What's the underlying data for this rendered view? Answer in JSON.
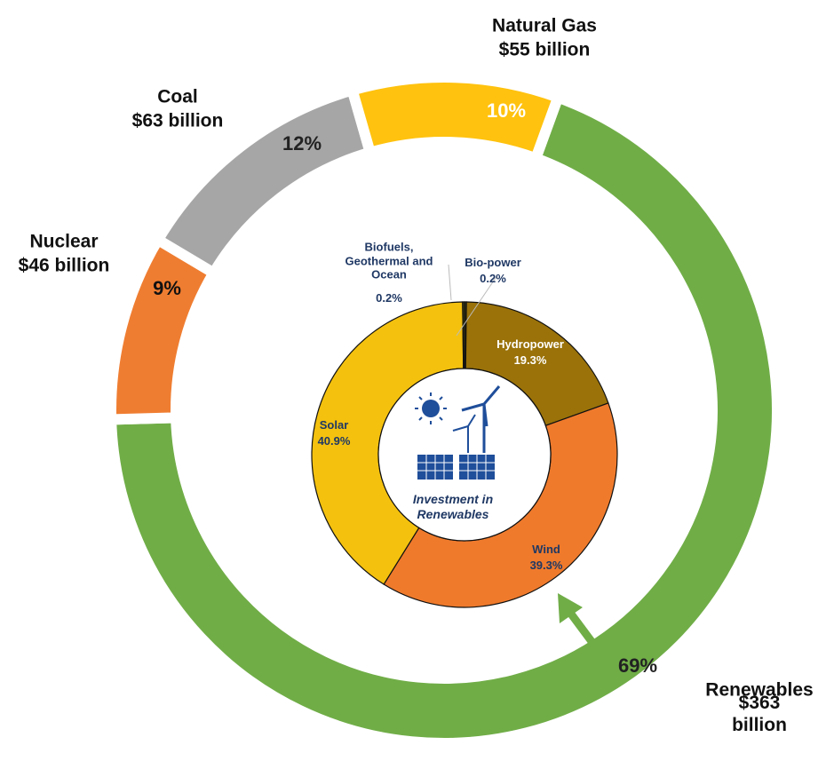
{
  "chart_data": [
    {
      "type": "donut",
      "categories": [
        "Renewables",
        "Nuclear",
        "Coal",
        "Natural Gas"
      ],
      "values": [
        69,
        9,
        12,
        10
      ],
      "value_labels": [
        "69%",
        "9%",
        "12%",
        "10%"
      ],
      "amounts": [
        363,
        46,
        63,
        55
      ],
      "amount_labels": [
        "$363 billion",
        "$46 billion",
        "$63 billion",
        "$55 billion"
      ],
      "colors": [
        "#70ad47",
        "#ef7d31",
        "#a6a6a6",
        "#ffc20e"
      ]
    },
    {
      "type": "donut",
      "title": "Investment in Renewables",
      "categories": [
        "Bio-power",
        "Hydropower",
        "Wind",
        "Solar",
        "Biofuels, Geothermal and Ocean"
      ],
      "values": [
        0.2,
        19.3,
        39.3,
        40.9,
        0.2
      ],
      "value_labels": [
        "0.2%",
        "19.3%",
        "39.3%",
        "40.9%",
        "0.2%"
      ],
      "colors": [
        "#3b3b10",
        "#9a7209",
        "#ef7a2c",
        "#f4c10e",
        "#4a4a10"
      ]
    }
  ]
}
